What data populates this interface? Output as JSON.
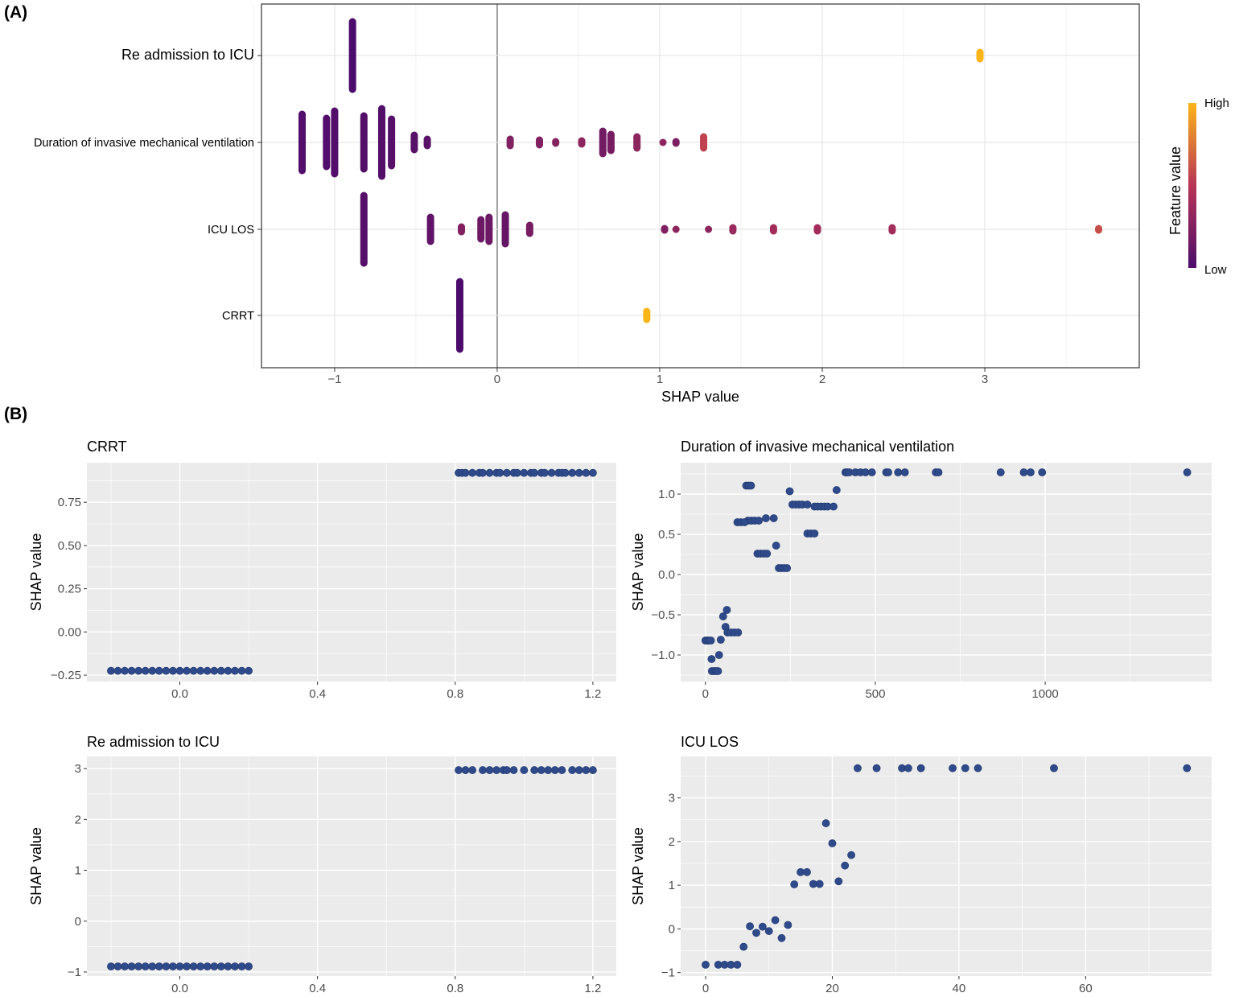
{
  "panel_labels": [
    "(A)",
    "(B)"
  ],
  "colors": {
    "low": "#4B0C6B",
    "mid": "#B93556",
    "high": "#FCB519",
    "dependence_point": "#2E4A8A",
    "panel_bg": "#EBEBEB"
  },
  "chart_data": [
    {
      "type": "scatter",
      "subtype": "beeswarm",
      "title": "",
      "xlabel": "SHAP value",
      "ylabel": "",
      "xlim": [
        -1.45,
        3.95
      ],
      "xticks": [
        -1,
        0,
        1,
        2,
        3
      ],
      "grid": true,
      "legend": {
        "title": "Feature value",
        "high": "High",
        "low": "Low",
        "placement": "right"
      },
      "categories": [
        "Re admission to ICU",
        "Duration of invasive mechanical ventilation",
        "ICU LOS",
        "CRRT"
      ],
      "series": [
        {
          "feature": "Re admission to ICU",
          "clusters": [
            {
              "x": -0.89,
              "n": 47,
              "value": 0.0
            },
            {
              "x": 2.97,
              "n": 9,
              "value": 1.0
            }
          ]
        },
        {
          "feature": "Duration of invasive mechanical ventilation",
          "clusters": [
            {
              "x": -1.2,
              "n": 40,
              "value": 0.03
            },
            {
              "x": -1.05,
              "n": 35,
              "value": 0.03
            },
            {
              "x": -1.0,
              "n": 44,
              "value": 0.03
            },
            {
              "x": -0.82,
              "n": 38,
              "value": 0.04
            },
            {
              "x": -0.71,
              "n": 47,
              "value": 0.04
            },
            {
              "x": -0.65,
              "n": 34,
              "value": 0.05
            },
            {
              "x": -0.51,
              "n": 14,
              "value": 0.06
            },
            {
              "x": -0.43,
              "n": 9,
              "value": 0.07
            },
            {
              "x": 0.08,
              "n": 9,
              "value": 0.25
            },
            {
              "x": 0.26,
              "n": 8,
              "value": 0.25
            },
            {
              "x": 0.36,
              "n": 4,
              "value": 0.27
            },
            {
              "x": 0.52,
              "n": 7,
              "value": 0.3
            },
            {
              "x": 0.65,
              "n": 19,
              "value": 0.18
            },
            {
              "x": 0.7,
              "n": 15,
              "value": 0.2
            },
            {
              "x": 0.86,
              "n": 12,
              "value": 0.3
            },
            {
              "x": 1.02,
              "n": 5,
              "value": 0.3
            },
            {
              "x": 1.1,
              "n": 6,
              "value": 0.22
            },
            {
              "x": 1.27,
              "n": 12,
              "value": 0.55
            }
          ]
        },
        {
          "feature": "ICU LOS",
          "clusters": [
            {
              "x": -0.82,
              "n": 47,
              "value": 0.05
            },
            {
              "x": -0.41,
              "n": 20,
              "value": 0.1
            },
            {
              "x": -0.22,
              "n": 8,
              "value": 0.25
            },
            {
              "x": -0.1,
              "n": 17,
              "value": 0.15
            },
            {
              "x": -0.05,
              "n": 20,
              "value": 0.15
            },
            {
              "x": 0.05,
              "n": 23,
              "value": 0.12
            },
            {
              "x": 0.2,
              "n": 10,
              "value": 0.2
            },
            {
              "x": 1.03,
              "n": 6,
              "value": 0.25
            },
            {
              "x": 1.1,
              "n": 5,
              "value": 0.3
            },
            {
              "x": 1.3,
              "n": 5,
              "value": 0.3
            },
            {
              "x": 1.45,
              "n": 3,
              "value": 0.35
            },
            {
              "x": 1.7,
              "n": 3,
              "value": 0.4
            },
            {
              "x": 1.97,
              "n": 3,
              "value": 0.4
            },
            {
              "x": 2.43,
              "n": 3,
              "value": 0.4
            },
            {
              "x": 3.7,
              "n": 6,
              "value": 0.6
            }
          ]
        },
        {
          "feature": "CRRT",
          "clusters": [
            {
              "x": -0.23,
              "n": 47,
              "value": 0.0
            },
            {
              "x": 0.92,
              "n": 10,
              "value": 1.0
            }
          ]
        }
      ]
    },
    {
      "type": "scatter",
      "title": "CRRT",
      "xlabel": "",
      "ylabel": "SHAP value",
      "xlim": [
        -0.27,
        1.268
      ],
      "ylim": [
        -0.287,
        0.979
      ],
      "xticks": [
        0.0,
        0.4,
        0.8,
        1.2
      ],
      "xtick_labels": [
        "0.0",
        "0.4",
        "0.8",
        "1.2"
      ],
      "yticks": [
        -0.25,
        0.0,
        0.25,
        0.5,
        0.75
      ],
      "ytick_labels": [
        "−0.25",
        "0.00",
        "0.25",
        "0.50",
        "0.75"
      ],
      "x": [
        -0.2,
        -0.18,
        -0.16,
        -0.14,
        -0.12,
        -0.1,
        -0.08,
        -0.06,
        -0.04,
        -0.02,
        0.0,
        0.02,
        0.04,
        0.06,
        0.08,
        0.1,
        0.12,
        0.14,
        0.16,
        0.18,
        0.2,
        0.81,
        0.82,
        0.83,
        0.85,
        0.87,
        0.88,
        0.9,
        0.92,
        0.93,
        0.95,
        0.97,
        0.98,
        1.0,
        1.02,
        1.03,
        1.05,
        1.06,
        1.08,
        1.1,
        1.11,
        1.12,
        1.14,
        1.16,
        1.18,
        1.2
      ],
      "y": [
        -0.225,
        -0.225,
        -0.225,
        -0.225,
        -0.225,
        -0.225,
        -0.225,
        -0.225,
        -0.225,
        -0.225,
        -0.225,
        -0.225,
        -0.225,
        -0.225,
        -0.225,
        -0.225,
        -0.225,
        -0.225,
        -0.225,
        -0.225,
        -0.225,
        0.92,
        0.92,
        0.92,
        0.92,
        0.92,
        0.92,
        0.92,
        0.92,
        0.92,
        0.92,
        0.92,
        0.92,
        0.92,
        0.92,
        0.92,
        0.92,
        0.92,
        0.92,
        0.92,
        0.92,
        0.92,
        0.92,
        0.92,
        0.92,
        0.92
      ]
    },
    {
      "type": "scatter",
      "title": "Duration of invasive mechanical ventilation",
      "xlabel": "",
      "ylabel": "SHAP value",
      "xlim": [
        -73,
        1490
      ],
      "ylim": [
        -1.33,
        1.39
      ],
      "xticks": [
        0,
        500,
        1000
      ],
      "xtick_labels": [
        "0",
        "500",
        "1000"
      ],
      "yticks": [
        -1.0,
        -0.5,
        0.0,
        0.5,
        1.0
      ],
      "ytick_labels": [
        "−1.0",
        "−0.5",
        "0.0",
        "0.5",
        "1.0"
      ],
      "x": [
        412,
        417,
        423,
        441,
        456,
        471,
        490,
        532,
        538,
        567,
        587,
        678,
        686,
        869,
        937,
        957,
        991,
        1418,
        120,
        127,
        134,
        248,
        386,
        256,
        265,
        275,
        285,
        300,
        321,
        330,
        340,
        350,
        360,
        377,
        178,
        201,
        125,
        135,
        145,
        157,
        94,
        104,
        115,
        300,
        310,
        321,
        208,
        153,
        162,
        172,
        181,
        216,
        224,
        232,
        240,
        63,
        52,
        59,
        65,
        75,
        85,
        96,
        45,
        0,
        5,
        10,
        16,
        40,
        18,
        19,
        25,
        31,
        37
      ],
      "y": [
        1.27,
        1.27,
        1.27,
        1.27,
        1.27,
        1.27,
        1.27,
        1.27,
        1.27,
        1.27,
        1.27,
        1.27,
        1.27,
        1.27,
        1.27,
        1.27,
        1.27,
        1.27,
        1.105,
        1.105,
        1.105,
        1.035,
        1.05,
        0.87,
        0.87,
        0.87,
        0.87,
        0.87,
        0.845,
        0.845,
        0.845,
        0.845,
        0.845,
        0.845,
        0.7,
        0.7,
        0.67,
        0.67,
        0.67,
        0.67,
        0.65,
        0.65,
        0.65,
        0.51,
        0.51,
        0.51,
        0.36,
        0.26,
        0.26,
        0.26,
        0.26,
        0.08,
        0.08,
        0.08,
        0.08,
        -0.44,
        -0.52,
        -0.65,
        -0.72,
        -0.72,
        -0.72,
        -0.72,
        -0.81,
        -0.82,
        -0.82,
        -0.82,
        -0.82,
        -1.0,
        -1.05,
        -1.2,
        -1.2,
        -1.2,
        -1.2
      ]
    },
    {
      "type": "scatter",
      "title": "Re admission to ICU",
      "xlabel": "",
      "ylabel": "SHAP value",
      "xlim": [
        -0.27,
        1.268
      ],
      "ylim": [
        -1.08,
        3.24
      ],
      "xticks": [
        0.0,
        0.4,
        0.8,
        1.2
      ],
      "xtick_labels": [
        "0.0",
        "0.4",
        "0.8",
        "1.2"
      ],
      "yticks": [
        -1,
        0,
        1,
        2,
        3
      ],
      "ytick_labels": [
        "−1",
        "0",
        "1",
        "2",
        "3"
      ],
      "x": [
        -0.2,
        -0.18,
        -0.16,
        -0.14,
        -0.12,
        -0.1,
        -0.08,
        -0.06,
        -0.04,
        -0.02,
        0.0,
        0.02,
        0.04,
        0.06,
        0.08,
        0.1,
        0.12,
        0.14,
        0.16,
        0.18,
        0.2,
        0.81,
        0.83,
        0.85,
        0.88,
        0.9,
        0.92,
        0.94,
        0.95,
        0.97,
        1.0,
        1.03,
        1.05,
        1.07,
        1.09,
        1.11,
        1.14,
        1.16,
        1.18,
        1.2
      ],
      "y": [
        -0.89,
        -0.89,
        -0.89,
        -0.89,
        -0.89,
        -0.89,
        -0.89,
        -0.89,
        -0.89,
        -0.89,
        -0.89,
        -0.89,
        -0.89,
        -0.89,
        -0.89,
        -0.89,
        -0.89,
        -0.89,
        -0.89,
        -0.89,
        -0.89,
        2.97,
        2.97,
        2.97,
        2.97,
        2.97,
        2.97,
        2.97,
        2.97,
        2.97,
        2.97,
        2.97,
        2.97,
        2.97,
        2.97,
        2.97,
        2.97,
        2.97,
        2.97,
        2.97
      ]
    },
    {
      "type": "scatter",
      "title": "ICU LOS",
      "xlabel": "",
      "ylabel": "SHAP value",
      "xlim": [
        -3.94,
        79.9
      ],
      "ylim": [
        -1.08,
        3.95
      ],
      "xticks": [
        0,
        20,
        40,
        60
      ],
      "xtick_labels": [
        "0",
        "20",
        "40",
        "60"
      ],
      "yticks": [
        -1,
        0,
        1,
        2,
        3
      ],
      "ytick_labels": [
        "−1",
        "0",
        "1",
        "2",
        "3"
      ],
      "x": [
        24,
        27,
        31,
        32,
        34,
        39,
        41,
        43,
        55,
        76,
        19,
        20,
        23,
        22,
        21,
        15,
        16,
        14,
        17,
        18,
        11,
        13,
        7,
        9,
        8,
        10,
        12,
        6,
        0,
        2,
        3,
        4,
        5
      ],
      "y": [
        3.68,
        3.68,
        3.68,
        3.68,
        3.68,
        3.68,
        3.68,
        3.68,
        3.68,
        3.68,
        2.42,
        1.96,
        1.69,
        1.45,
        1.09,
        1.3,
        1.3,
        1.02,
        1.03,
        1.03,
        0.2,
        0.09,
        0.06,
        0.05,
        -0.09,
        -0.05,
        -0.21,
        -0.41,
        -0.82,
        -0.82,
        -0.82,
        -0.82,
        -0.82
      ]
    }
  ]
}
